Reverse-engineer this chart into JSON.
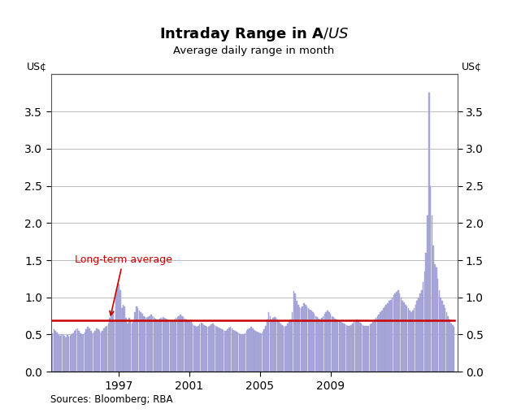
{
  "title": "Intraday Range in A$/US$",
  "subtitle": "Average daily range in month",
  "ylabel_left": "US¢",
  "ylabel_right": "US¢",
  "source_text": "Sources: Bloomberg; RBA",
  "ylim": [
    0,
    4.0
  ],
  "yticks": [
    0.0,
    0.5,
    1.0,
    1.5,
    2.0,
    2.5,
    3.0,
    3.5
  ],
  "long_term_avg": 0.69,
  "long_term_avg_label": "Long-term average",
  "bar_color": "#aaaadd",
  "bar_edge_color": "#9999cc",
  "avg_line_color": "#cc0000",
  "start_year": 1993,
  "start_month": 4,
  "x_tick_years": [
    1997,
    2001,
    2005,
    2009
  ],
  "values": [
    0.52,
    0.57,
    0.55,
    0.53,
    0.5,
    0.48,
    0.5,
    0.51,
    0.48,
    0.46,
    0.49,
    0.47,
    0.48,
    0.5,
    0.52,
    0.55,
    0.57,
    0.58,
    0.55,
    0.52,
    0.5,
    0.51,
    0.53,
    0.57,
    0.6,
    0.58,
    0.55,
    0.52,
    0.53,
    0.55,
    0.58,
    0.57,
    0.55,
    0.53,
    0.55,
    0.58,
    0.6,
    0.62,
    0.65,
    0.72,
    0.78,
    0.82,
    0.68,
    1.05,
    1.12,
    1.18,
    1.1,
    0.85,
    0.9,
    0.88,
    0.72,
    0.65,
    0.72,
    0.68,
    0.65,
    0.68,
    0.8,
    0.88,
    0.85,
    0.82,
    0.8,
    0.78,
    0.75,
    0.73,
    0.72,
    0.73,
    0.75,
    0.77,
    0.75,
    0.73,
    0.71,
    0.7,
    0.7,
    0.71,
    0.72,
    0.73,
    0.72,
    0.71,
    0.7,
    0.69,
    0.68,
    0.67,
    0.68,
    0.7,
    0.72,
    0.73,
    0.75,
    0.77,
    0.75,
    0.73,
    0.71,
    0.7,
    0.69,
    0.68,
    0.67,
    0.65,
    0.63,
    0.61,
    0.6,
    0.62,
    0.64,
    0.66,
    0.65,
    0.63,
    0.61,
    0.6,
    0.6,
    0.62,
    0.64,
    0.65,
    0.63,
    0.61,
    0.6,
    0.59,
    0.58,
    0.57,
    0.56,
    0.55,
    0.55,
    0.57,
    0.59,
    0.6,
    0.58,
    0.56,
    0.55,
    0.54,
    0.53,
    0.52,
    0.51,
    0.5,
    0.5,
    0.52,
    0.55,
    0.57,
    0.58,
    0.6,
    0.58,
    0.56,
    0.55,
    0.54,
    0.53,
    0.52,
    0.52,
    0.54,
    0.57,
    0.62,
    0.7,
    0.8,
    0.75,
    0.7,
    0.72,
    0.73,
    0.72,
    0.7,
    0.68,
    0.65,
    0.63,
    0.61,
    0.6,
    0.62,
    0.65,
    0.68,
    0.7,
    0.8,
    1.08,
    1.05,
    0.95,
    0.9,
    0.87,
    0.85,
    0.88,
    0.92,
    0.9,
    0.88,
    0.85,
    0.83,
    0.82,
    0.8,
    0.78,
    0.75,
    0.73,
    0.71,
    0.7,
    0.72,
    0.75,
    0.78,
    0.8,
    0.82,
    0.8,
    0.78,
    0.75,
    0.73,
    0.71,
    0.7,
    0.69,
    0.68,
    0.67,
    0.66,
    0.65,
    0.64,
    0.63,
    0.62,
    0.62,
    0.63,
    0.65,
    0.67,
    0.68,
    0.7,
    0.68,
    0.66,
    0.65,
    0.63,
    0.62,
    0.61,
    0.61,
    0.62,
    0.64,
    0.65,
    0.67,
    0.7,
    0.72,
    0.75,
    0.77,
    0.8,
    0.82,
    0.85,
    0.88,
    0.9,
    0.92,
    0.95,
    0.97,
    1.0,
    1.03,
    1.05,
    1.07,
    1.1,
    1.05,
    1.0,
    0.95,
    0.93,
    0.9,
    0.88,
    0.85,
    0.82,
    0.8,
    0.82,
    0.85,
    0.9,
    0.95,
    1.0,
    1.05,
    1.1,
    1.2,
    1.35,
    1.6,
    2.1,
    3.75,
    2.5,
    2.1,
    1.7,
    1.45,
    1.4,
    1.25,
    1.1,
    1.0,
    0.95,
    0.9,
    0.85,
    0.8,
    0.75,
    0.7,
    0.65,
    0.63,
    0.6
  ]
}
